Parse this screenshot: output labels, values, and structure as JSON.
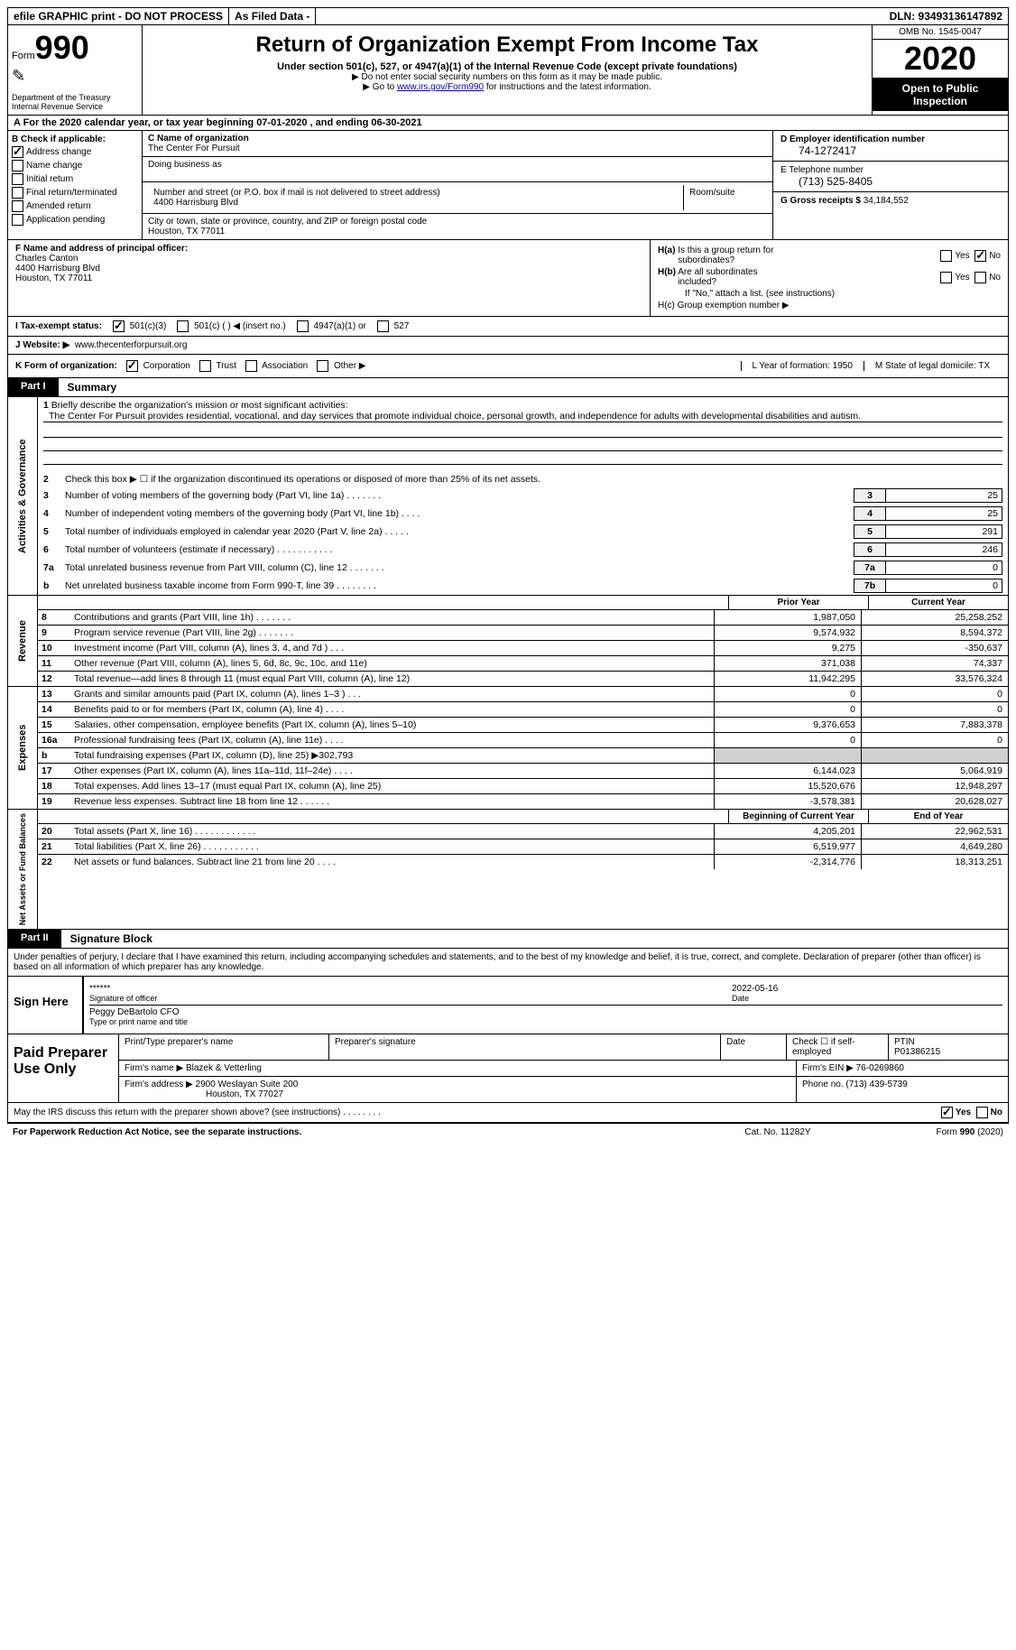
{
  "topbar": {
    "efile": "efile GRAPHIC print - DO NOT PROCESS",
    "asfiled": "As Filed Data -",
    "dln": "DLN: 93493136147892"
  },
  "header": {
    "form_prefix": "Form",
    "form_num": "990",
    "dept": "Department of the Treasury",
    "irs": "Internal Revenue Service",
    "title": "Return of Organization Exempt From Income Tax",
    "subtitle": "Under section 501(c), 527, or 4947(a)(1) of the Internal Revenue Code (except private foundations)",
    "note1": "▶ Do not enter social security numbers on this form as it may be made public.",
    "note2_pre": "▶ Go to ",
    "note2_link": "www.irs.gov/Form990",
    "note2_post": " for instructions and the latest information.",
    "omb": "OMB No. 1545-0047",
    "year": "2020",
    "open": "Open to Public Inspection"
  },
  "rowA": "A   For the 2020 calendar year, or tax year beginning 07-01-2020   , and ending 06-30-2021",
  "colB": {
    "title": "B Check if applicable:",
    "items": [
      "Address change",
      "Name change",
      "Initial return",
      "Final return/terminated",
      "Amended return",
      "Application pending"
    ],
    "checked": [
      true,
      false,
      false,
      false,
      false,
      false
    ]
  },
  "colC": {
    "name_label": "C Name of organization",
    "name": "The Center For Pursuit",
    "dba_label": "Doing business as",
    "addr_label": "Number and street (or P.O. box if mail is not delivered to street address)",
    "room_label": "Room/suite",
    "addr": "4400 Harrisburg Blvd",
    "city_label": "City or town, state or province, country, and ZIP or foreign postal code",
    "city": "Houston, TX  77011"
  },
  "colD": {
    "ein_label": "D Employer identification number",
    "ein": "74-1272417",
    "tel_label": "E Telephone number",
    "tel": "(713) 525-8405",
    "gross_label": "G Gross receipts $",
    "gross": "34,184,552"
  },
  "principal": {
    "label": "F  Name and address of principal officer:",
    "name": "Charles Canton",
    "addr1": "4400 Harrisburg Blvd",
    "addr2": "Houston, TX  77011"
  },
  "hsection": {
    "ha": "H(a) Is this a group return for subordinates?",
    "hb": "H(b) Are all subordinates included?",
    "hb_note": "If \"No,\" attach a list. (see instructions)",
    "hc": "H(c) Group exemption number ▶"
  },
  "taxstatus": {
    "label": "I   Tax-exempt status:",
    "opts": [
      "501(c)(3)",
      "501(c) (   ) ◀ (insert no.)",
      "4947(a)(1) or",
      "527"
    ]
  },
  "website": {
    "label": "J   Website: ▶",
    "value": "www.thecenterforpursuit.org"
  },
  "krow": {
    "label": "K Form of organization:",
    "opts": [
      "Corporation",
      "Trust",
      "Association",
      "Other ▶"
    ],
    "l": "L Year of formation: 1950",
    "m": "M State of legal domicile: TX"
  },
  "part1": {
    "tag": "Part I",
    "title": "Summary",
    "mission_label": "1 Briefly describe the organization's mission or most significant activities:",
    "mission": "The Center For Pursuit provides residential, vocational, and day services that promote individual choice, personal growth, and independence for adults with developmental disabilities and autism.",
    "line2": "Check this box ▶ ☐ if the organization discontinued its operations or disposed of more than 25% of its net assets.",
    "gov_lines": [
      {
        "n": "3",
        "d": "Number of voting members of the governing body (Part VI, line 1a)   .    .    .    .    .    .    .",
        "b": "3",
        "v": "25"
      },
      {
        "n": "4",
        "d": "Number of independent voting members of the governing body (Part VI, line 1b)   .    .    .    .",
        "b": "4",
        "v": "25"
      },
      {
        "n": "5",
        "d": "Total number of individuals employed in calendar year 2020 (Part V, line 2a)   .    .    .    .    .",
        "b": "5",
        "v": "291"
      },
      {
        "n": "6",
        "d": "Total number of volunteers (estimate if necessary)   .    .    .    .    .    .    .    .    .    .    .",
        "b": "6",
        "v": "246"
      },
      {
        "n": "7a",
        "d": "Total unrelated business revenue from Part VIII, column (C), line 12   .    .    .    .    .    .    .",
        "b": "7a",
        "v": "0"
      },
      {
        "n": "b",
        "d": "Net unrelated business taxable income from Form 990-T, line 39   .    .    .    .    .    .    .    .",
        "b": "7b",
        "v": "0"
      }
    ]
  },
  "revenue": {
    "label": "Revenue",
    "col1": "Prior Year",
    "col2": "Current Year",
    "rows": [
      {
        "n": "8",
        "d": "Contributions and grants (Part VIII, line 1h)   .    .    .    .    .    .    .",
        "v1": "1,987,050",
        "v2": "25,258,252"
      },
      {
        "n": "9",
        "d": "Program service revenue (Part VIII, line 2g)   .    .    .    .    .    .    .",
        "v1": "9,574,932",
        "v2": "8,594,372"
      },
      {
        "n": "10",
        "d": "Investment income (Part VIII, column (A), lines 3, 4, and 7d )   .    .    .",
        "v1": "9,275",
        "v2": "-350,637"
      },
      {
        "n": "11",
        "d": "Other revenue (Part VIII, column (A), lines 5, 6d, 8c, 9c, 10c, and 11e)",
        "v1": "371,038",
        "v2": "74,337"
      },
      {
        "n": "12",
        "d": "Total revenue—add lines 8 through 11 (must equal Part VIII, column (A), line 12)",
        "v1": "11,942,295",
        "v2": "33,576,324"
      }
    ]
  },
  "expenses": {
    "label": "Expenses",
    "rows": [
      {
        "n": "13",
        "d": "Grants and similar amounts paid (Part IX, column (A), lines 1–3 )   .    .    .",
        "v1": "0",
        "v2": "0"
      },
      {
        "n": "14",
        "d": "Benefits paid to or for members (Part IX, column (A), line 4)   .    .    .    .",
        "v1": "0",
        "v2": "0"
      },
      {
        "n": "15",
        "d": "Salaries, other compensation, employee benefits (Part IX, column (A), lines 5–10)",
        "v1": "9,376,653",
        "v2": "7,883,378"
      },
      {
        "n": "16a",
        "d": "Professional fundraising fees (Part IX, column (A), line 11e)   .    .    .    .",
        "v1": "0",
        "v2": "0"
      },
      {
        "n": "b",
        "d": "Total fundraising expenses (Part IX, column (D), line 25) ▶302,793",
        "v1": "",
        "v2": "",
        "grey": true
      },
      {
        "n": "17",
        "d": "Other expenses (Part IX, column (A), lines 11a–11d, 11f–24e)   .    .    .    .",
        "v1": "6,144,023",
        "v2": "5,064,919"
      },
      {
        "n": "18",
        "d": "Total expenses. Add lines 13–17 (must equal Part IX, column (A), line 25)",
        "v1": "15,520,676",
        "v2": "12,948,297"
      },
      {
        "n": "19",
        "d": "Revenue less expenses. Subtract line 18 from line 12   .    .    .    .    .    .",
        "v1": "-3,578,381",
        "v2": "20,628,027"
      }
    ]
  },
  "netassets": {
    "label": "Net Assets or Fund Balances",
    "col1": "Beginning of Current Year",
    "col2": "End of Year",
    "rows": [
      {
        "n": "20",
        "d": "Total assets (Part X, line 16)   .    .    .    .    .    .    .    .    .    .    .    .",
        "v1": "4,205,201",
        "v2": "22,962,531"
      },
      {
        "n": "21",
        "d": "Total liabilities (Part X, line 26)   .    .    .    .    .    .    .    .    .    .    .",
        "v1": "6,519,977",
        "v2": "4,649,280"
      },
      {
        "n": "22",
        "d": "Net assets or fund balances. Subtract line 21 from line 20   .    .    .    .",
        "v1": "-2,314,776",
        "v2": "18,313,251"
      }
    ]
  },
  "part2": {
    "tag": "Part II",
    "title": "Signature Block",
    "intro": "Under penalties of perjury, I declare that I have examined this return, including accompanying schedules and statements, and to the best of my knowledge and belief, it is true, correct, and complete. Declaration of preparer (other than officer) is based on all information of which preparer has any knowledge."
  },
  "sign": {
    "label": "Sign Here",
    "stars": "******",
    "sig_label": "Signature of officer",
    "date": "2022-05-16",
    "date_label": "Date",
    "name": "Peggy DeBartolo CFO",
    "name_label": "Type or print name and title"
  },
  "prep": {
    "label": "Paid Preparer Use Only",
    "h1": "Print/Type preparer's name",
    "h2": "Preparer's signature",
    "h3": "Date",
    "h4": "Check ☐ if self-employed",
    "h5": "PTIN",
    "ptin": "P01386215",
    "firm_label": "Firm's name    ▶",
    "firm": "Blazek & Vetterling",
    "ein_label": "Firm's EIN ▶",
    "ein": "76-0269860",
    "addr_label": "Firm's address ▶",
    "addr1": "2900 Weslayan Suite 200",
    "addr2": "Houston, TX  77027",
    "phone_label": "Phone no.",
    "phone": "(713) 439-5739"
  },
  "footer": {
    "discuss": "May the IRS discuss this return with the preparer shown above? (see instructions)   .    .    .    .    .    .    .    .",
    "paperwork": "For Paperwork Reduction Act Notice, see the separate instructions.",
    "cat": "Cat. No. 11282Y",
    "form": "Form 990 (2020)"
  }
}
